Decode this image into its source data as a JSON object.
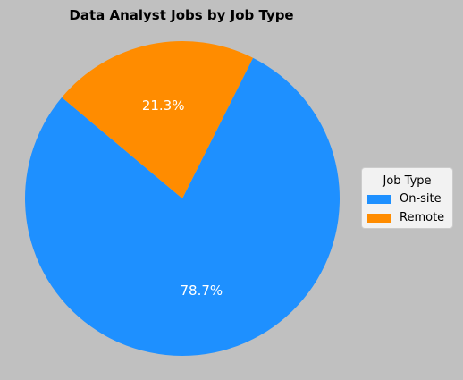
{
  "chart_data": {
    "type": "pie",
    "title": "Data Analyst Jobs by Job Type",
    "labels": [
      "On-site",
      "Remote"
    ],
    "values": [
      78.7,
      21.3
    ],
    "value_labels": [
      "78.7%",
      "21.3%"
    ],
    "colors": [
      "#1e90ff",
      "#ff8c00"
    ],
    "legend": {
      "title": "Job Type",
      "placement": "right"
    }
  }
}
